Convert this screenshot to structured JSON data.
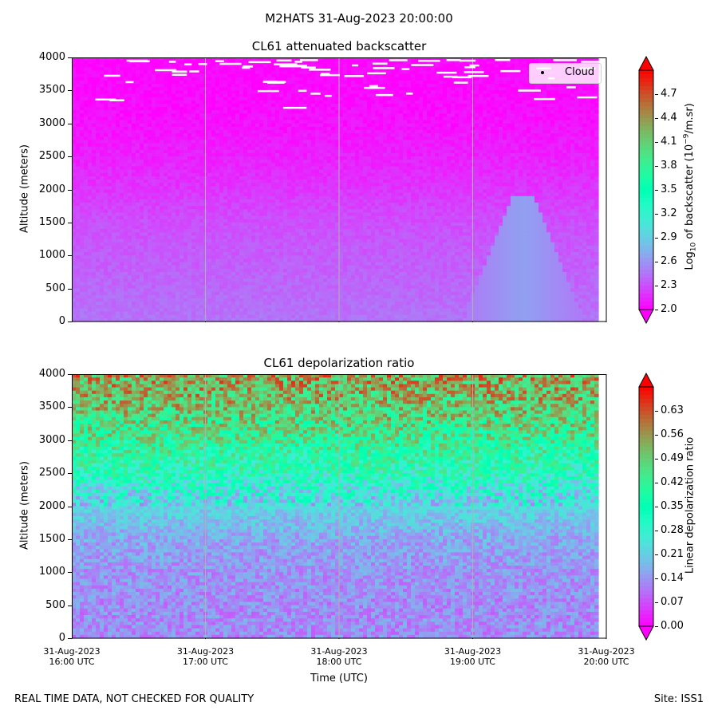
{
  "suptitle": "M2HATS 31-Aug-2023 20:00:00",
  "footer": {
    "left": "REAL TIME DATA, NOT CHECKED FOR QUALITY",
    "right": "Site: ISS1"
  },
  "colors": {
    "cloud_marker": "#ffffff",
    "grid": "#b0b0b0"
  },
  "chart_data": [
    {
      "type": "heatmap",
      "title": "CL61 attenuated backscatter",
      "ylabel": "Altitude (meters)",
      "ylim": [
        0,
        4000
      ],
      "yticks": [
        "0",
        "500",
        "1000",
        "1500",
        "2000",
        "2500",
        "3000",
        "3500",
        "4000"
      ],
      "xlim_hours_utc": [
        16,
        20
      ],
      "legend": {
        "label": "Cloud",
        "placement": "top-right"
      },
      "colorbar": {
        "label_main": "Log",
        "label_sub": "10",
        "label_rest": " of backscatter (10",
        "label_sup": "−9",
        "label_end": "/m.sr)",
        "range": [
          2.0,
          5.0
        ],
        "ticks": [
          "2.0",
          "2.3",
          "2.6",
          "2.9",
          "3.2",
          "3.5",
          "3.8",
          "4.1",
          "4.4",
          "4.7"
        ],
        "colormap": "rainbow"
      },
      "profile_log10": [
        {
          "alt": 0,
          "value": 2.45
        },
        {
          "alt": 500,
          "value": 2.4
        },
        {
          "alt": 1000,
          "value": 2.35
        },
        {
          "alt": 1500,
          "value": 2.3
        },
        {
          "alt": 2000,
          "value": 2.2
        },
        {
          "alt": 2500,
          "value": 2.12
        },
        {
          "alt": 3000,
          "value": 2.06
        },
        {
          "alt": 3500,
          "value": 2.03
        },
        {
          "alt": 4000,
          "value": 2.02
        }
      ],
      "plume": {
        "center_hour_utc": 19.43,
        "top_alt": 1900,
        "value": 2.65
      }
    },
    {
      "type": "heatmap",
      "title": "CL61 depolarization ratio",
      "ylabel": "Altitude (meters)",
      "xlabel": "Time (UTC)",
      "ylim": [
        0,
        4000
      ],
      "yticks": [
        "0",
        "500",
        "1000",
        "1500",
        "2000",
        "2500",
        "3000",
        "3500",
        "4000"
      ],
      "xticks": [
        {
          "date": "31-Aug-2023",
          "time": "16:00 UTC"
        },
        {
          "date": "31-Aug-2023",
          "time": "17:00 UTC"
        },
        {
          "date": "31-Aug-2023",
          "time": "18:00 UTC"
        },
        {
          "date": "31-Aug-2023",
          "time": "19:00 UTC"
        },
        {
          "date": "31-Aug-2023",
          "time": "20:00 UTC"
        }
      ],
      "colorbar": {
        "label": "Linear depolarization ratio",
        "range": [
          0.0,
          0.7
        ],
        "ticks": [
          "0.00",
          "0.07",
          "0.14",
          "0.21",
          "0.28",
          "0.35",
          "0.42",
          "0.49",
          "0.56",
          "0.63"
        ],
        "colormap": "rainbow"
      },
      "profile_ratio": [
        {
          "alt": 0,
          "value": 0.13
        },
        {
          "alt": 500,
          "value": 0.13
        },
        {
          "alt": 1000,
          "value": 0.14
        },
        {
          "alt": 1500,
          "value": 0.16
        },
        {
          "alt": 2000,
          "value": 0.22
        },
        {
          "alt": 2500,
          "value": 0.33
        },
        {
          "alt": 3000,
          "value": 0.42
        },
        {
          "alt": 3500,
          "value": 0.5
        },
        {
          "alt": 4000,
          "value": 0.55
        }
      ]
    }
  ]
}
